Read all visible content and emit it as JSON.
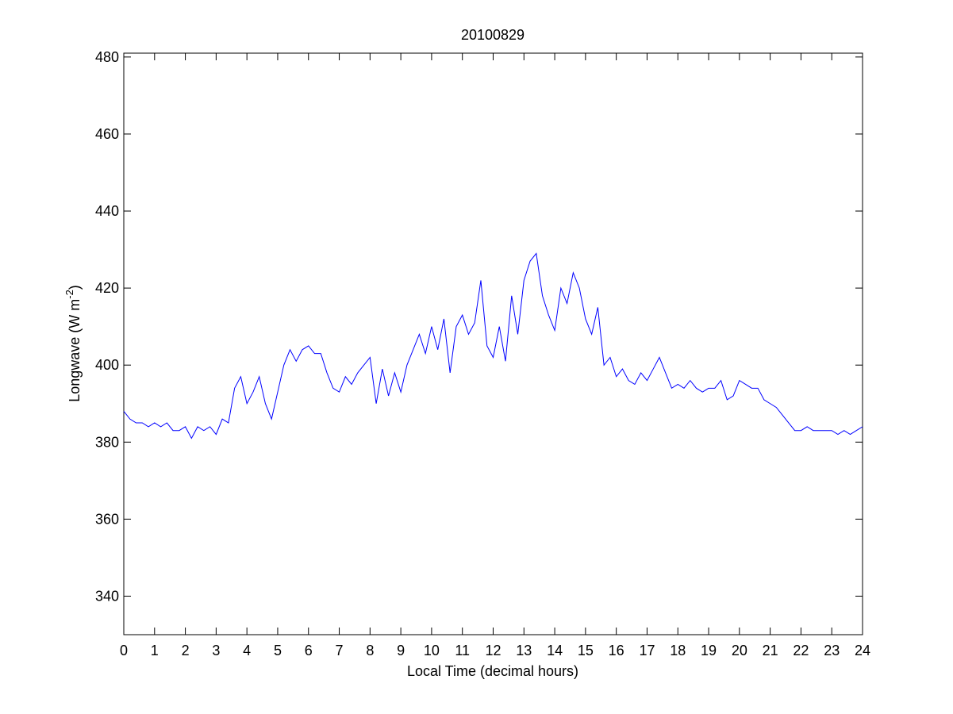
{
  "chart_data": {
    "type": "line",
    "title": "20100829",
    "xlabel": "Local Time (decimal hours)",
    "ylabel": [
      "Longwave (W m",
      "-2",
      ")"
    ],
    "x": [
      0,
      0.2,
      0.4,
      0.6,
      0.8,
      1,
      1.2,
      1.4,
      1.6,
      1.8,
      2,
      2.2,
      2.4,
      2.6,
      2.8,
      3,
      3.2,
      3.4,
      3.6,
      3.8,
      4,
      4.2,
      4.4,
      4.6,
      4.8,
      5,
      5.2,
      5.4,
      5.6,
      5.8,
      6,
      6.2,
      6.4,
      6.6,
      6.8,
      7,
      7.2,
      7.4,
      7.6,
      7.8,
      8,
      8.2,
      8.4,
      8.6,
      8.8,
      9,
      9.2,
      9.4,
      9.6,
      9.8,
      10,
      10.2,
      10.4,
      10.6,
      10.8,
      11,
      11.2,
      11.4,
      11.6,
      11.8,
      12,
      12.2,
      12.4,
      12.6,
      12.8,
      13,
      13.2,
      13.4,
      13.6,
      13.8,
      14,
      14.2,
      14.4,
      14.6,
      14.8,
      15,
      15.2,
      15.4,
      15.6,
      15.8,
      16,
      16.2,
      16.4,
      16.6,
      16.8,
      17,
      17.2,
      17.4,
      17.6,
      17.8,
      18,
      18.2,
      18.4,
      18.6,
      18.8,
      19,
      19.2,
      19.4,
      19.6,
      19.8,
      20,
      20.2,
      20.4,
      20.6,
      20.8,
      21,
      21.2,
      21.4,
      21.6,
      21.8,
      22,
      22.2,
      22.4,
      22.6,
      22.8,
      23,
      23.2,
      23.4,
      23.6,
      23.8,
      24
    ],
    "series": [
      {
        "name": "Longwave",
        "color": "#0000ff",
        "values": [
          388,
          386,
          385,
          385,
          384,
          385,
          384,
          385,
          383,
          383,
          384,
          381,
          384,
          383,
          384,
          382,
          386,
          385,
          394,
          397,
          390,
          393,
          397,
          390,
          386,
          393,
          400,
          404,
          401,
          404,
          405,
          403,
          403,
          398,
          394,
          393,
          397,
          395,
          398,
          400,
          402,
          390,
          399,
          392,
          398,
          393,
          400,
          404,
          408,
          403,
          410,
          404,
          412,
          398,
          410,
          413,
          408,
          411,
          422,
          405,
          402,
          410,
          401,
          418,
          408,
          422,
          427,
          429,
          418,
          413,
          409,
          420,
          416,
          424,
          420,
          412,
          408,
          415,
          400,
          402,
          397,
          399,
          396,
          395,
          398,
          396,
          399,
          402,
          398,
          394,
          395,
          394,
          396,
          394,
          393,
          394,
          394,
          396,
          391,
          392,
          396,
          395,
          394,
          394,
          391,
          390,
          389,
          387,
          385,
          383,
          383,
          384,
          383,
          383,
          383,
          383,
          382,
          383,
          382,
          383,
          384
        ]
      }
    ],
    "xlim": [
      0,
      24
    ],
    "ylim": [
      330,
      481
    ],
    "xticks": [
      0,
      1,
      2,
      3,
      4,
      5,
      6,
      7,
      8,
      9,
      10,
      11,
      12,
      13,
      14,
      15,
      16,
      17,
      18,
      19,
      20,
      21,
      22,
      23,
      24
    ],
    "yticks": [
      340,
      360,
      380,
      400,
      420,
      440,
      460,
      480
    ]
  }
}
